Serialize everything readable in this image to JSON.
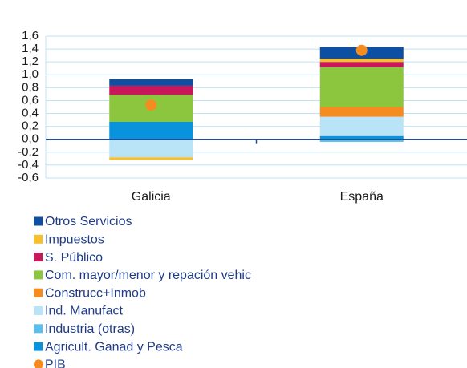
{
  "chart_data": {
    "type": "bar",
    "stacked": true,
    "categories": [
      "Galicia",
      "España"
    ],
    "ylim": [
      -0.6,
      1.6
    ],
    "yticks": [
      {
        "value": 1.6,
        "label": "1,6"
      },
      {
        "value": 1.4,
        "label": "1,4"
      },
      {
        "value": 1.2,
        "label": "1,2"
      },
      {
        "value": 1.0,
        "label": "1,0"
      },
      {
        "value": 0.8,
        "label": "0,8"
      },
      {
        "value": 0.6,
        "label": "0,6"
      },
      {
        "value": 0.4,
        "label": "0,4"
      },
      {
        "value": 0.2,
        "label": "0,2"
      },
      {
        "value": 0.0,
        "label": "0,0"
      },
      {
        "value": -0.2,
        "label": "-0,2"
      },
      {
        "value": -0.4,
        "label": "-0,4"
      },
      {
        "value": -0.6,
        "label": "-0,6"
      }
    ],
    "grid": true,
    "series": [
      {
        "name": "Otros Servicios",
        "color": "#0d4fa3",
        "values": [
          0.1,
          0.18
        ]
      },
      {
        "name": "Impuestos",
        "color": "#f5c02c",
        "values": [
          -0.04,
          0.05
        ]
      },
      {
        "name": "S. Público",
        "color": "#c8175b",
        "values": [
          0.14,
          0.08
        ]
      },
      {
        "name": "Com. mayor/menor y repación vehic",
        "color": "#8cc63f",
        "values": [
          0.42,
          0.62
        ]
      },
      {
        "name": "Construcc+Inmob",
        "color": "#f68b1f",
        "values": [
          0,
          0.15
        ]
      },
      {
        "name": "Ind. Manufact",
        "color": "#b9e3f7",
        "values": [
          -0.28,
          0.3
        ]
      },
      {
        "name": "Industria (otras)",
        "color": "#5bbfeb",
        "values": [
          0,
          -0.04
        ]
      },
      {
        "name": "Agricult. Ganad y Pesca",
        "color": "#0a93dd",
        "values": [
          0.27,
          0.05
        ]
      }
    ],
    "points": {
      "name": "PIB",
      "color": "#f68b1f",
      "values": [
        0.53,
        1.38
      ]
    }
  }
}
